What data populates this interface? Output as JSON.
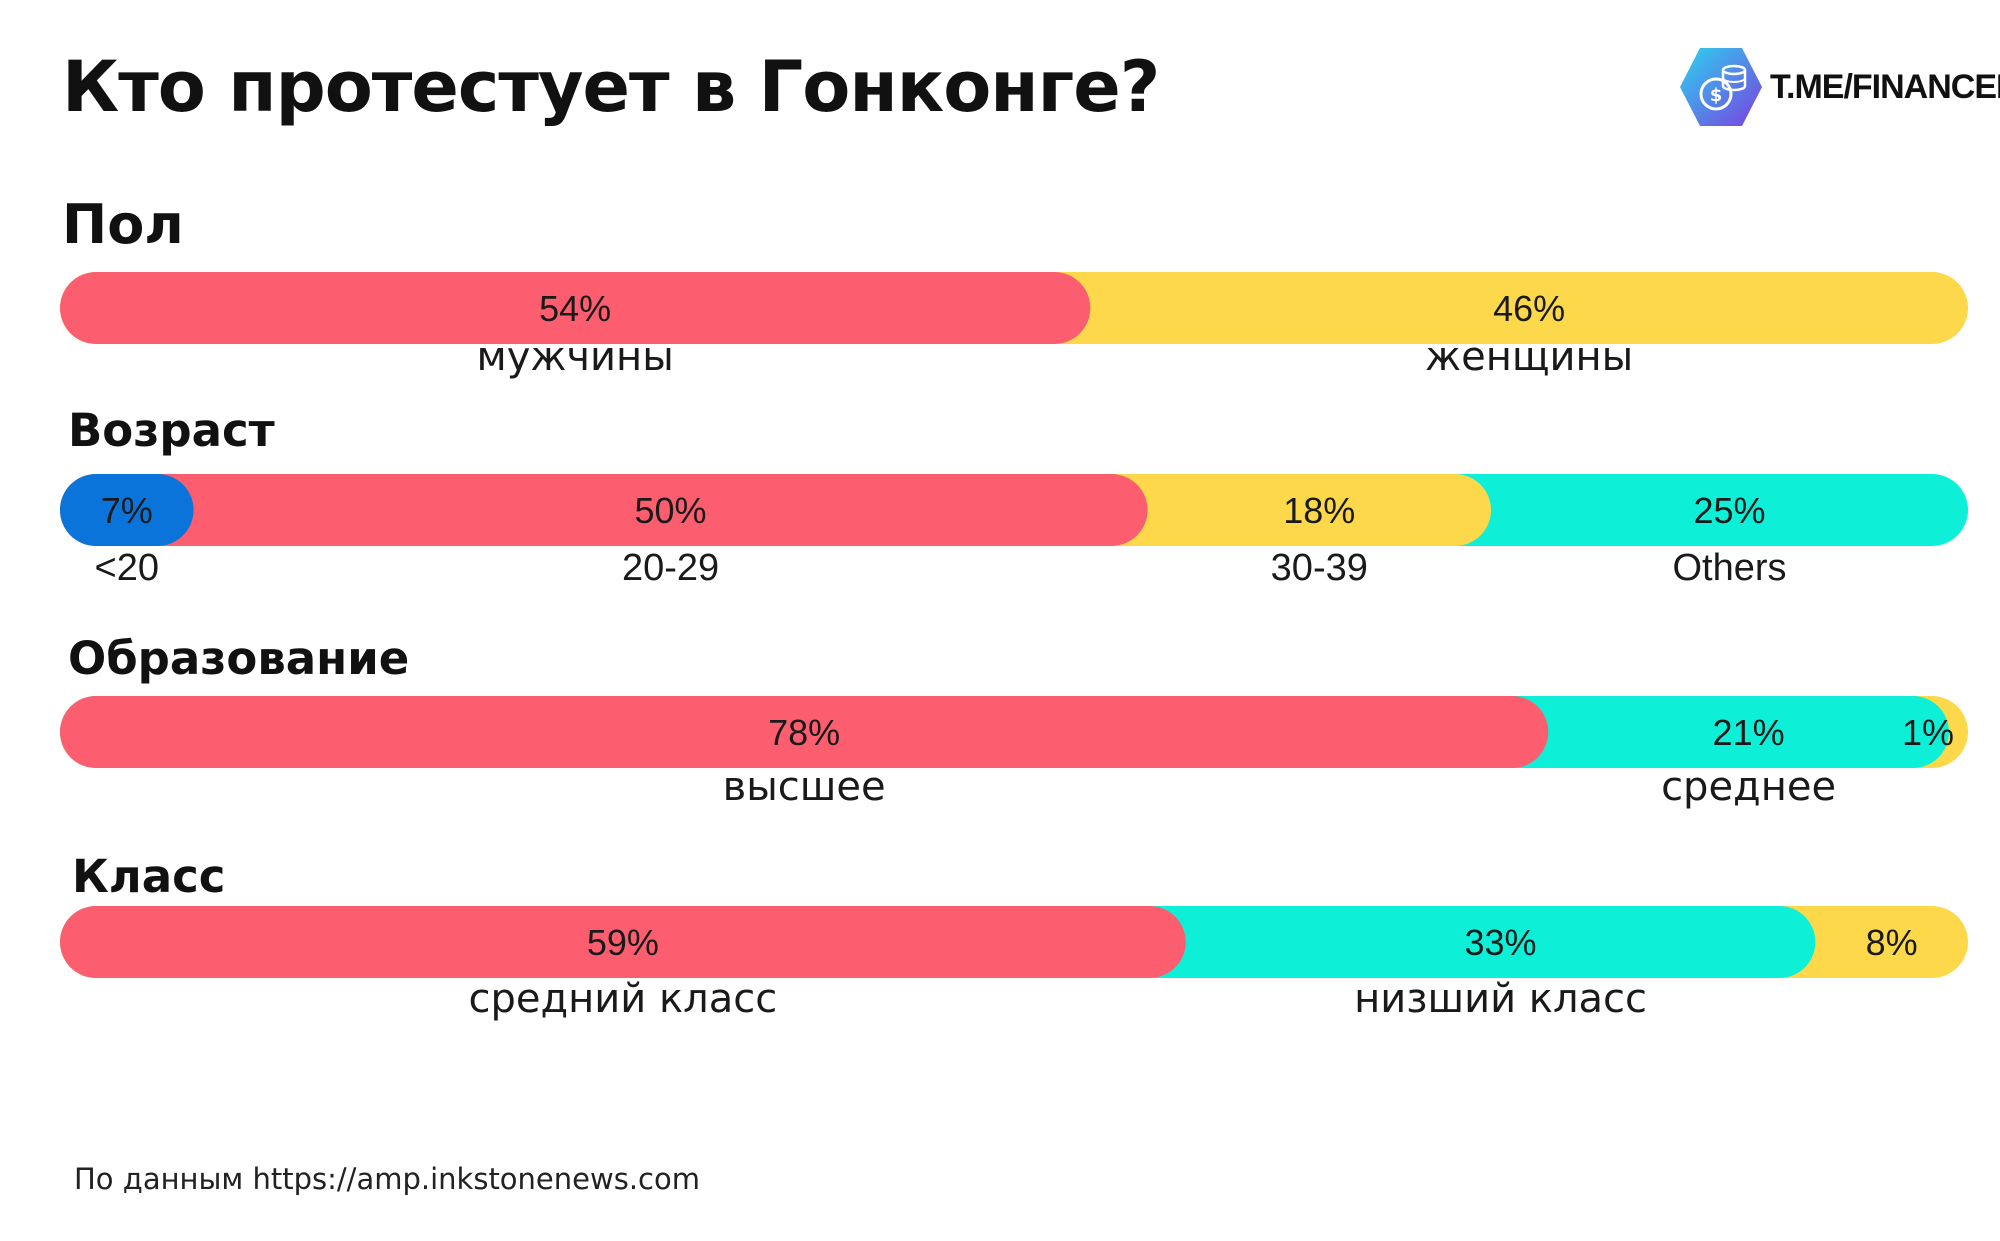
{
  "title": "Кто протестует в Гонконге?",
  "brand": {
    "text": "T.ME/FINANCEKAZ",
    "icon": "coins-gear-icon"
  },
  "source": "По данным https://amp.inkstonenews.com",
  "colors": {
    "red": "#FC5E6F",
    "yellow": "#FDD84A",
    "cyan": "#0DEFD7",
    "blue": "#0B74DB"
  },
  "chart_data": [
    {
      "type": "bar",
      "title": "Пол",
      "categories": [
        "мужчины",
        "женщины"
      ],
      "values": [
        54,
        46
      ],
      "value_labels": [
        "54%",
        "46%"
      ],
      "colors": [
        "#FC5E6F",
        "#FDD84A"
      ]
    },
    {
      "type": "bar",
      "title": "Возраст",
      "categories": [
        "<20",
        "20-29",
        "30-39",
        "Others"
      ],
      "values": [
        7,
        50,
        18,
        25
      ],
      "value_labels": [
        "7%",
        "50%",
        "18%",
        "25%"
      ],
      "colors": [
        "#0B74DB",
        "#FC5E6F",
        "#FDD84A",
        "#0DEFD7"
      ]
    },
    {
      "type": "bar",
      "title": "Образование",
      "categories": [
        "высшее",
        "среднее",
        ""
      ],
      "values": [
        78,
        21,
        1
      ],
      "value_labels": [
        "78%",
        "21%",
        "1%"
      ],
      "colors": [
        "#FC5E6F",
        "#0DEFD7",
        "#FDD84A"
      ]
    },
    {
      "type": "bar",
      "title": "Класс",
      "categories": [
        "средний класс",
        "низший класс",
        ""
      ],
      "values": [
        59,
        33,
        8
      ],
      "value_labels": [
        "59%",
        "33%",
        "8%"
      ],
      "colors": [
        "#FC5E6F",
        "#0DEFD7",
        "#FDD84A"
      ]
    }
  ]
}
